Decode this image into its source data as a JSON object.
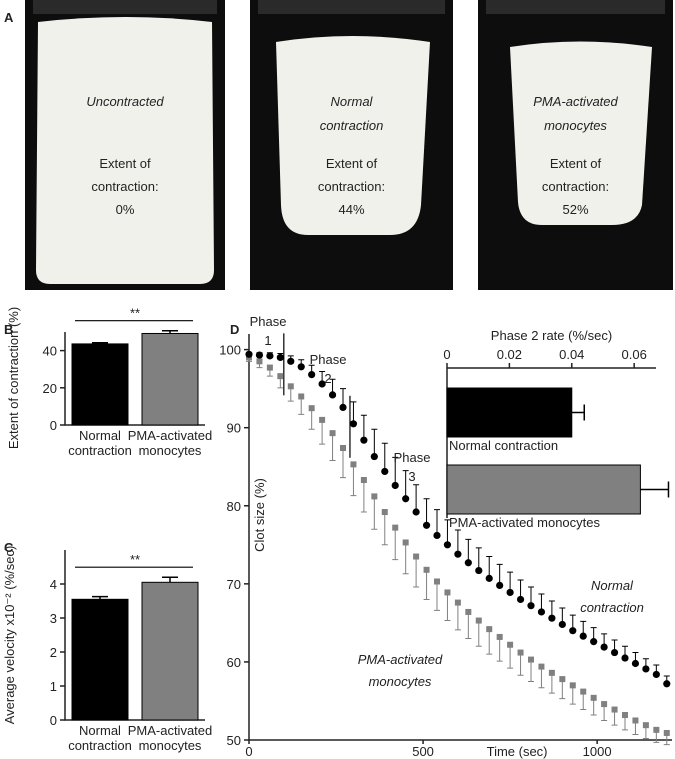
{
  "photo_panel": {
    "label": "A",
    "photos": [
      {
        "title": "Uncontracted",
        "caption_lines": [
          "Extent of",
          "contraction:"
        ],
        "value": "0%"
      },
      {
        "title": "Normal contraction",
        "caption_lines": [
          "Extent of",
          "contraction:"
        ],
        "value": "44%"
      },
      {
        "title": "PMA-activated monocytes",
        "caption_lines": [
          "Extent of",
          "contraction:"
        ],
        "value": "52%"
      }
    ]
  },
  "chart_data": [
    {
      "type": "bar",
      "panel_label": "B",
      "ylabel": "Extent of contraction (%)",
      "categories": [
        "Normal contraction",
        "PMA-activated monocytes"
      ],
      "values": [
        43.6,
        49.2
      ],
      "errors": [
        0.6,
        1.5
      ],
      "colors": [
        "#000000",
        "#808080"
      ],
      "ylim": [
        0,
        50
      ],
      "yticks": [
        0,
        20,
        40
      ],
      "significance": "**"
    },
    {
      "type": "bar",
      "panel_label": "C",
      "ylabel": "Average velocity x10⁻² (%/sec)",
      "categories": [
        "Normal contraction",
        "PMA-activated monocytes"
      ],
      "values": [
        3.55,
        4.05
      ],
      "errors": [
        0.08,
        0.15
      ],
      "colors": [
        "#000000",
        "#808080"
      ],
      "ylim": [
        0,
        5
      ],
      "yticks": [
        0,
        1,
        2,
        3,
        4
      ],
      "significance": "**"
    },
    {
      "type": "line",
      "panel_label": "D",
      "xlabel": "Time (sec)",
      "ylabel": "Clot size (%)",
      "x": [
        0,
        30,
        60,
        90,
        120,
        150,
        180,
        210,
        240,
        270,
        300,
        330,
        360,
        390,
        420,
        450,
        480,
        510,
        540,
        570,
        600,
        630,
        660,
        690,
        720,
        750,
        780,
        810,
        840,
        870,
        900,
        930,
        960,
        990,
        1020,
        1050,
        1080,
        1110,
        1140,
        1170,
        1200
      ],
      "series": [
        {
          "name": "Normal contraction",
          "color": "#000000",
          "marker": "circle",
          "error_direction": "up",
          "values": [
            99.4,
            99.3,
            99.2,
            99.0,
            98.5,
            97.8,
            96.8,
            95.6,
            94.2,
            92.6,
            90.5,
            88.4,
            86.3,
            84.4,
            82.6,
            80.9,
            79.2,
            77.5,
            76.2,
            75.0,
            73.8,
            72.7,
            71.7,
            70.7,
            69.8,
            68.9,
            68.0,
            67.2,
            66.4,
            65.6,
            64.8,
            64.0,
            63.3,
            62.6,
            61.9,
            61.2,
            60.5,
            59.8,
            59.1,
            58.4,
            57.2
          ],
          "errors": [
            0.2,
            0.3,
            0.4,
            0.5,
            0.7,
            0.9,
            1.2,
            1.6,
            2.0,
            2.4,
            2.8,
            3.2,
            3.5,
            3.6,
            3.6,
            3.6,
            3.5,
            3.4,
            3.3,
            3.2,
            3.1,
            3.0,
            2.9,
            2.8,
            2.7,
            2.6,
            2.5,
            2.4,
            2.3,
            2.2,
            2.1,
            2.0,
            1.9,
            1.8,
            1.7,
            1.6,
            1.5,
            1.4,
            1.3,
            1.2,
            1.0
          ]
        },
        {
          "name": "PMA-activated monocytes",
          "color": "#808080",
          "marker": "square",
          "error_direction": "down",
          "values": [
            99.0,
            98.5,
            97.7,
            96.6,
            95.3,
            94.0,
            92.5,
            91.0,
            89.3,
            87.4,
            85.3,
            83.3,
            81.2,
            79.2,
            77.2,
            75.3,
            73.5,
            71.8,
            70.3,
            68.9,
            67.6,
            66.4,
            65.3,
            64.2,
            63.2,
            62.2,
            61.2,
            60.3,
            59.4,
            58.6,
            57.8,
            57.0,
            56.2,
            55.4,
            54.6,
            53.9,
            53.2,
            52.5,
            51.9,
            51.3,
            50.9
          ],
          "errors": [
            0.5,
            0.8,
            1.1,
            1.5,
            1.9,
            2.3,
            2.7,
            3.1,
            3.5,
            3.8,
            4.0,
            4.1,
            4.2,
            4.2,
            4.1,
            4.0,
            3.9,
            3.8,
            3.7,
            3.6,
            3.5,
            3.4,
            3.3,
            3.2,
            3.1,
            3.0,
            2.9,
            2.8,
            2.7,
            2.6,
            2.5,
            2.4,
            2.3,
            2.2,
            2.1,
            2.0,
            1.9,
            1.8,
            1.7,
            1.6,
            1.5
          ]
        }
      ],
      "xlim": [
        0,
        1215
      ],
      "xticks": [
        0,
        500,
        1000
      ],
      "ylim": [
        50,
        102
      ],
      "yticks": [
        50,
        60,
        70,
        80,
        90,
        100
      ],
      "phase_boundaries": [
        100,
        290
      ],
      "annotations": [
        {
          "text": "Phase 1"
        },
        {
          "text": "Phase 2"
        },
        {
          "text": "Phase 3"
        },
        {
          "text": "Normal contraction"
        },
        {
          "text": "PMA-activated monocytes"
        }
      ]
    },
    {
      "type": "barh",
      "title": "Phase 2 rate  (%/sec)",
      "categories": [
        "Normal contraction",
        "PMA-activated monocytes"
      ],
      "values": [
        0.04,
        0.062
      ],
      "errors": [
        0.004,
        0.009
      ],
      "colors": [
        "#000000",
        "#808080"
      ],
      "xlim": [
        0,
        0.067
      ],
      "xticks": [
        0,
        0.02,
        0.04,
        0.06
      ]
    }
  ]
}
